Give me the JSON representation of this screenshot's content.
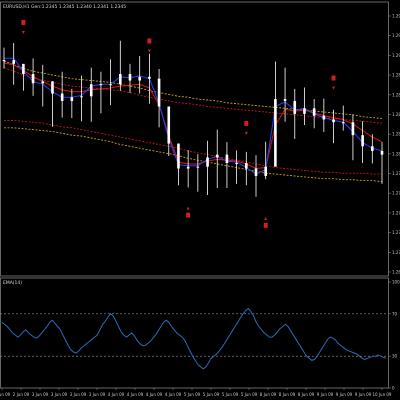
{
  "window": {
    "symbol_header": "EURUSD,H1 Gen:1.2345 1.2345 1.2340 1.2341 1.2345",
    "indicator_header": "EMA(14)"
  },
  "colors": {
    "background": "#000000",
    "frame": "#808080",
    "candle": "#ffffff",
    "fast_ma": "#2a3cff",
    "median_band": "#c81414",
    "outer_band": "#c8a014",
    "signal_arrow": "#d21e1e",
    "indicator_line": "#2b6bb8",
    "indicator_levels": "#9a9a9a"
  },
  "chart_data": [
    {
      "type": "line",
      "title": "",
      "y_ticks": [
        "1.2950",
        "1.2930",
        "1.2910",
        "1.2890",
        "1.2870",
        "1.2850",
        "1.2830",
        "1.2810",
        "1.2790",
        "1.2770",
        "1.2750",
        "1.2730",
        "1.2710",
        "1.2690"
      ],
      "x_ticks": [
        "2 Jun 09",
        "2 Jun 09",
        "3 Jun 09",
        "3 Jun 09",
        "3 Jun 09",
        "3 Jun 09",
        "4 Jun 09",
        "4 Jun 09",
        "4 Jun 09",
        "4 Jun 09",
        "5 Jun 09",
        "5 Jun 09",
        "5 Jun 09",
        "5 Jun 09",
        "8 Jun 09",
        "8 Jun 09",
        "8 Jun 09",
        "9 Jun 09",
        "9 Jun 09",
        "9 Jun 09",
        "10 Jun 09"
      ],
      "ylim": [
        1.2677,
        1.2962
      ],
      "series": [
        {
          "role": "close",
          "values": [
            1.291,
            1.2906,
            1.2895,
            1.2885,
            1.2887,
            1.2874,
            1.2866,
            1.287,
            1.2871,
            1.2884,
            1.2884,
            1.2884,
            1.2895,
            1.2888,
            1.2892,
            1.289,
            1.286,
            1.282,
            1.2793,
            1.2795,
            1.2795,
            1.2805,
            1.2808,
            1.2799,
            1.2799,
            1.2793,
            1.2785,
            1.2795,
            1.2868,
            1.2866,
            1.2852,
            1.2858,
            1.285,
            1.2846,
            1.2843,
            1.2843,
            1.2829,
            1.2817,
            1.2812,
            1.2808
          ]
        },
        {
          "role": "fast_ma",
          "values": [
            1.2912,
            1.2912,
            1.2898,
            1.2887,
            1.2884,
            1.2876,
            1.287,
            1.287,
            1.2872,
            1.2882,
            1.2884,
            1.2884,
            1.2892,
            1.2891,
            1.2893,
            1.289,
            1.2863,
            1.2825,
            1.2797,
            1.2796,
            1.2796,
            1.2803,
            1.2806,
            1.2801,
            1.28,
            1.2794,
            1.2787,
            1.2792,
            1.286,
            1.2865,
            1.2856,
            1.2858,
            1.2852,
            1.2848,
            1.2845,
            1.2843,
            1.2833,
            1.2821,
            1.2815,
            1.2812
          ]
        },
        {
          "role": "median_band",
          "values": [
            1.2907,
            1.2905,
            1.2899,
            1.2892,
            1.2887,
            1.2882,
            1.2878,
            1.2876,
            1.2876,
            1.2878,
            1.2879,
            1.288,
            1.2882,
            1.2883,
            1.2884,
            1.288,
            1.2862,
            1.2828,
            1.28,
            1.2798,
            1.2798,
            1.2801,
            1.2803,
            1.2802,
            1.2801,
            1.2798,
            1.2793,
            1.2794,
            1.284,
            1.2857,
            1.2855,
            1.2856,
            1.2853,
            1.285,
            1.2848,
            1.2846,
            1.2841,
            1.2834,
            1.2827,
            1.2822
          ]
        },
        {
          "role": "upper_median",
          "values": [
            1.2902,
            1.2898,
            1.2894,
            1.2891,
            1.2888,
            1.2886,
            1.2884,
            1.2882,
            1.2881,
            1.288,
            1.2879,
            1.2878,
            1.2877,
            1.2875,
            1.2872,
            1.287,
            1.2868,
            1.2866,
            1.2864,
            1.2863,
            1.2862,
            1.286,
            1.2859,
            1.2858,
            1.2857,
            1.2856,
            1.2855,
            1.2854,
            1.2853,
            1.2852,
            1.2851,
            1.285,
            1.2849,
            1.2848,
            1.2847,
            1.2846,
            1.2845,
            1.2844,
            1.2843,
            1.2842
          ]
        },
        {
          "role": "upper_outer",
          "values": [
            1.2909,
            1.2905,
            1.2901,
            1.2898,
            1.2896,
            1.2894,
            1.2892,
            1.289,
            1.2889,
            1.2888,
            1.2887,
            1.2886,
            1.2884,
            1.2882,
            1.288,
            1.2877,
            1.2875,
            1.2873,
            1.2871,
            1.287,
            1.2868,
            1.2867,
            1.2866,
            1.2864,
            1.2863,
            1.2862,
            1.2861,
            1.286,
            1.2859,
            1.2858,
            1.2857,
            1.2856,
            1.2855,
            1.2854,
            1.2853,
            1.2852,
            1.2851,
            1.2849,
            1.2848,
            1.2847
          ]
        },
        {
          "role": "lower_median",
          "values": [
            1.2845,
            1.2845,
            1.2844,
            1.2843,
            1.2842,
            1.284,
            1.2838,
            1.2837,
            1.2835,
            1.2833,
            1.2831,
            1.2829,
            1.2827,
            1.2825,
            1.2823,
            1.2821,
            1.2819,
            1.2817,
            1.2815,
            1.2812,
            1.281,
            1.2808,
            1.2806,
            1.2804,
            1.2802,
            1.28,
            1.2798,
            1.2796,
            1.2794,
            1.2793,
            1.2792,
            1.2791,
            1.279,
            1.2789,
            1.2789,
            1.2788,
            1.2788,
            1.2788,
            1.2787,
            1.2787
          ]
        },
        {
          "role": "lower_outer",
          "values": [
            1.2837,
            1.2837,
            1.2836,
            1.2835,
            1.2834,
            1.2833,
            1.2831,
            1.2829,
            1.2828,
            1.2826,
            1.2824,
            1.2822,
            1.2819,
            1.2817,
            1.2815,
            1.2813,
            1.2811,
            1.2809,
            1.2807,
            1.2804,
            1.2802,
            1.28,
            1.2798,
            1.2796,
            1.2794,
            1.2792,
            1.279,
            1.2788,
            1.2787,
            1.2786,
            1.2785,
            1.2784,
            1.2783,
            1.2782,
            1.2782,
            1.2781,
            1.2781,
            1.278,
            1.278,
            1.2779
          ]
        }
      ],
      "signals": [
        {
          "bar": 2,
          "price": 1.2948,
          "dir": "down"
        },
        {
          "bar": 15,
          "price": 1.2928,
          "dir": "down"
        },
        {
          "bar": 25,
          "price": 1.2839,
          "dir": "down"
        },
        {
          "bar": 34,
          "price": 1.2888,
          "dir": "down"
        },
        {
          "bar": 19,
          "price": 1.274,
          "dir": "up"
        },
        {
          "bar": 27,
          "price": 1.2729,
          "dir": "up"
        }
      ]
    },
    {
      "type": "line",
      "title": "EMA(14)",
      "y_ticks": [
        "100",
        "70",
        "30",
        "0"
      ],
      "ylim": [
        0,
        100
      ],
      "levels": [
        70,
        30
      ],
      "values": [
        62,
        60,
        58,
        55,
        52,
        50,
        48,
        50,
        53,
        55,
        52,
        50,
        48,
        47,
        49,
        52,
        55,
        58,
        62,
        64,
        61,
        58,
        55,
        50,
        45,
        40,
        36,
        34,
        33,
        35,
        38,
        40,
        42,
        44,
        46,
        48,
        50,
        55,
        60,
        63,
        67,
        70,
        68,
        63,
        58,
        53,
        50,
        48,
        50,
        52,
        49,
        45,
        42,
        40,
        40,
        42,
        44,
        47,
        50,
        54,
        58,
        62,
        64,
        62,
        58,
        55,
        52,
        50,
        48,
        45,
        40,
        35,
        30,
        26,
        22,
        20,
        18,
        20,
        24,
        28,
        30,
        32,
        35,
        38,
        42,
        46,
        50,
        54,
        58,
        62,
        66,
        70,
        73,
        75,
        72,
        68,
        62,
        58,
        55,
        52,
        50,
        48,
        48,
        50,
        53,
        56,
        58,
        60,
        58,
        54,
        50,
        46,
        42,
        38,
        34,
        30,
        28,
        26,
        27,
        30,
        34,
        38,
        42,
        46,
        48,
        47,
        45,
        42,
        40,
        38,
        36,
        35,
        34,
        33,
        32,
        30,
        28,
        27,
        28,
        29,
        30,
        30,
        31,
        30,
        29,
        28
      ]
    }
  ]
}
